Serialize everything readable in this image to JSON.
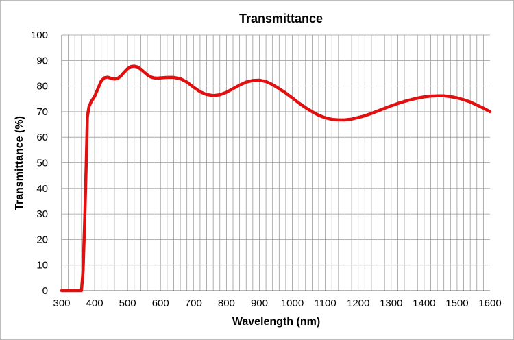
{
  "colors": {
    "series": "#e01010",
    "grid": "#9a9a9a",
    "axis": "#6b6b6b"
  },
  "chart_data": {
    "type": "line",
    "title": "Transmittance",
    "xlabel": "Wavelength (nm)",
    "ylabel": "Transmittance (%)",
    "xlim": [
      300,
      1600
    ],
    "ylim": [
      0,
      100
    ],
    "x_ticks": [
      300,
      400,
      500,
      600,
      700,
      800,
      900,
      1000,
      1100,
      1200,
      1300,
      1400,
      1500,
      1600
    ],
    "y_ticks": [
      0,
      10,
      20,
      30,
      40,
      50,
      60,
      70,
      80,
      90,
      100
    ],
    "x_minor_step": 20,
    "grid": true,
    "legend": "none",
    "series": [
      {
        "x": [
          300,
          340,
          360,
          365,
          370,
          375,
          378,
          383,
          390,
          400,
          410,
          420,
          430,
          440,
          450,
          460,
          470,
          480,
          490,
          500,
          510,
          520,
          530,
          540,
          550,
          560,
          570,
          580,
          590,
          600,
          620,
          640,
          660,
          680,
          700,
          720,
          740,
          760,
          780,
          800,
          820,
          840,
          860,
          880,
          900,
          920,
          940,
          960,
          980,
          1000,
          1020,
          1040,
          1060,
          1080,
          1100,
          1120,
          1140,
          1160,
          1180,
          1200,
          1220,
          1240,
          1260,
          1280,
          1300,
          1320,
          1340,
          1360,
          1380,
          1400,
          1420,
          1440,
          1460,
          1480,
          1500,
          1520,
          1540,
          1560,
          1580,
          1600
        ],
        "y": [
          0,
          0,
          0,
          8,
          28,
          52,
          68,
          72,
          74,
          76,
          79,
          82,
          83.3,
          83.5,
          83,
          82.8,
          83,
          84,
          85.5,
          86.8,
          87.6,
          87.8,
          87.5,
          86.6,
          85.5,
          84.4,
          83.6,
          83.2,
          83.1,
          83.2,
          83.4,
          83.4,
          82.9,
          81.6,
          79.6,
          77.8,
          76.7,
          76.3,
          76.6,
          77.6,
          79,
          80.4,
          81.6,
          82.2,
          82.3,
          81.8,
          80.6,
          79,
          77.3,
          75.4,
          73.4,
          71.6,
          70,
          68.6,
          67.6,
          67,
          66.8,
          66.8,
          67.1,
          67.7,
          68.4,
          69.3,
          70.3,
          71.3,
          72.3,
          73.2,
          74,
          74.7,
          75.3,
          75.8,
          76.1,
          76.2,
          76.2,
          75.9,
          75.4,
          74.7,
          73.8,
          72.6,
          71.4,
          70
        ]
      }
    ]
  }
}
